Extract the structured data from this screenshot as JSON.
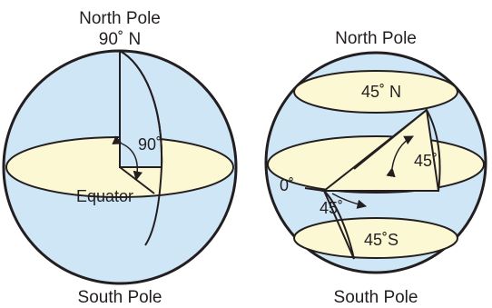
{
  "left_globe": {
    "north_label": "North Pole",
    "north_angle": "90˚ N",
    "south_label": "South Pole",
    "angle_label": "90˚",
    "equator_label": "Equator"
  },
  "right_globe": {
    "north_label": "North Pole",
    "south_label": "South Pole",
    "north_lat_label": "45˚ N",
    "south_lat_label": "45˚S",
    "zero_label": "0˚",
    "upper_angle_label": "45˚",
    "lower_angle_label": "45˚"
  },
  "colors": {
    "sphere_fill": "#cfe6f6",
    "plane_fill": "#fdf8d4",
    "outline": "#231f20"
  }
}
